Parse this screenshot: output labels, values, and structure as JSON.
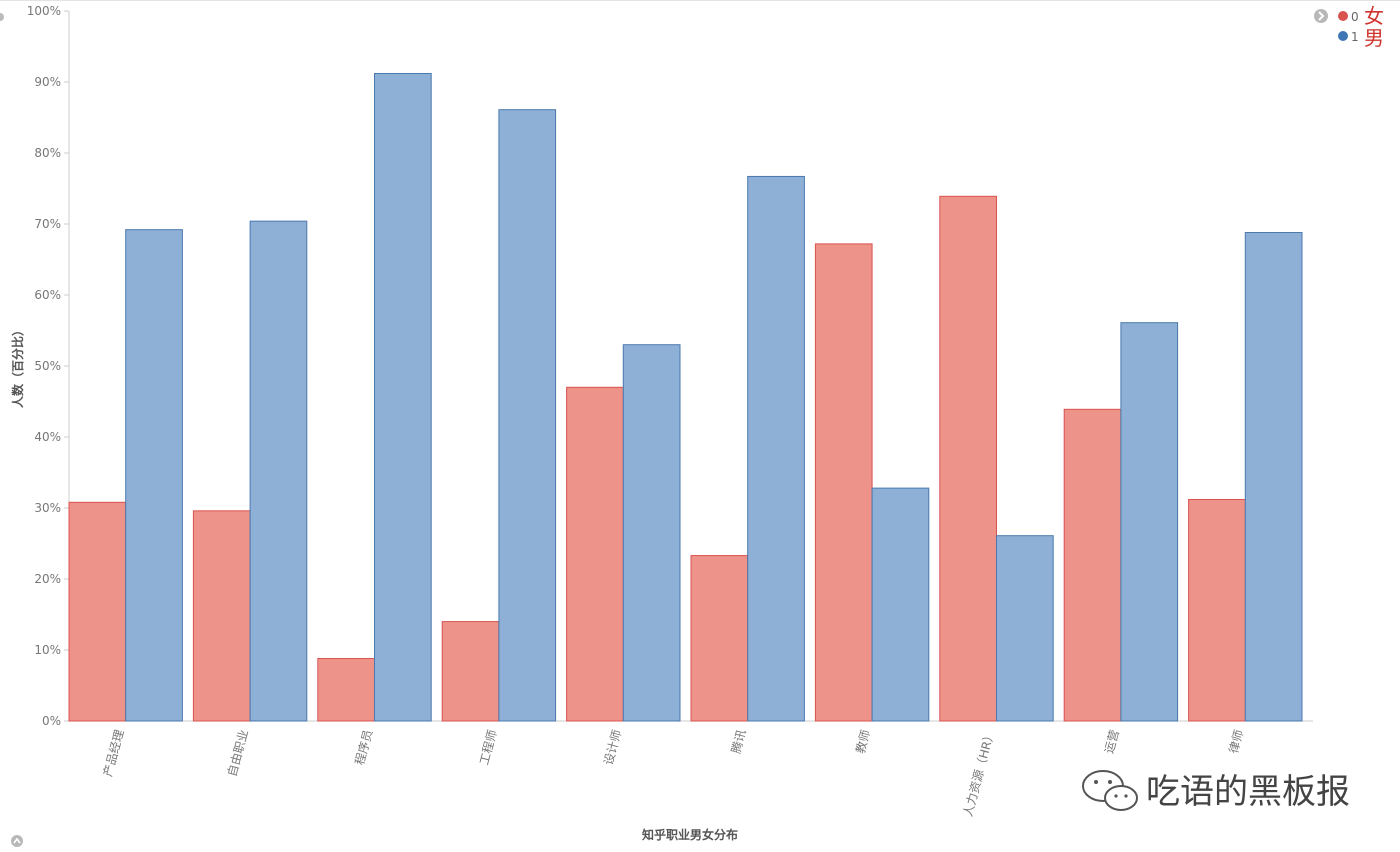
{
  "chart_data": {
    "type": "bar",
    "xlabel": "知乎职业男女分布",
    "ylabel": "人数（百分比）",
    "ylim": [
      0,
      100
    ],
    "yticks": [
      "0%",
      "10%",
      "20%",
      "30%",
      "40%",
      "50%",
      "60%",
      "70%",
      "80%",
      "90%",
      "100%"
    ],
    "categories": [
      "产品经理",
      "自由职业",
      "程序员",
      "工程师",
      "设计师",
      "腾讯",
      "教师",
      "人力资源（HR）",
      "运营",
      "律师"
    ],
    "series": [
      {
        "name": "0",
        "values": [
          30.8,
          29.6,
          8.8,
          14.0,
          47.0,
          23.3,
          67.2,
          73.9,
          43.9,
          31.2
        ]
      },
      {
        "name": "1",
        "values": [
          69.2,
          70.4,
          91.2,
          86.1,
          53.0,
          76.7,
          32.8,
          26.1,
          56.1,
          68.8
        ]
      }
    ],
    "legend_position": "top-right",
    "grid": false
  },
  "legend": {
    "items": [
      {
        "label": "0",
        "annotation": "女"
      },
      {
        "label": "1",
        "annotation": "男"
      }
    ]
  },
  "colors": {
    "series0_fill": "#ed938a",
    "series0_stroke": "#d9534f",
    "series1_fill": "#8eb0d6",
    "series1_stroke": "#4a79ad",
    "legend0_dot": "#d9534f",
    "legend1_dot": "#3e76b5",
    "axis": "#cccccc"
  },
  "watermark": "吃语的黑板报"
}
